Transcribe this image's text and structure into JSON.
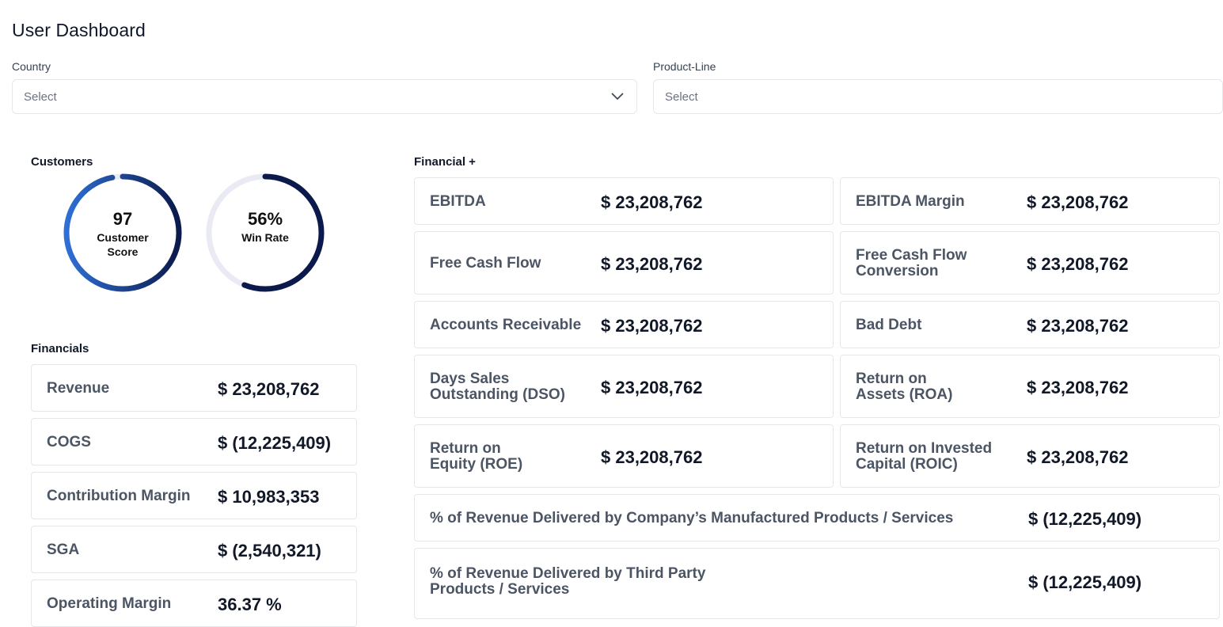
{
  "page_title": "User Dashboard",
  "filters": {
    "country": {
      "label": "Country",
      "placeholder": "Select"
    },
    "product_line": {
      "label": "Product-Line",
      "placeholder": "Select"
    }
  },
  "customers": {
    "section_label": "Customers",
    "customer_score": {
      "value": "97",
      "label_line1": "Customer",
      "label_line2": "Score",
      "progress": 0.97
    },
    "win_rate": {
      "value": "56%",
      "label": "Win Rate",
      "progress": 0.56
    }
  },
  "financials": {
    "section_label": "Financials",
    "items": [
      {
        "label": "Revenue",
        "value": "$ 23,208,762"
      },
      {
        "label": "COGS",
        "value": "$ (12,225,409)"
      },
      {
        "label": "Contribution Margin",
        "value": "$ 10,983,353"
      },
      {
        "label": "SGA",
        "value": "$ (2,540,321)"
      },
      {
        "label": "Operating Margin",
        "value": "36.37 %"
      }
    ]
  },
  "financial_plus": {
    "section_label": "Financial +",
    "items": [
      {
        "label": "EBITDA",
        "value": "$ 23,208,762"
      },
      {
        "label": "EBITDA Margin",
        "value": "$ 23,208,762"
      },
      {
        "label": "Free Cash Flow",
        "value": "$ 23,208,762"
      },
      {
        "label_line1": "Free Cash Flow",
        "label_line2": "Conversion",
        "value": "$ 23,208,762"
      },
      {
        "label": "Accounts Receivable",
        "value": "$ 23,208,762"
      },
      {
        "label": "Bad Debt",
        "value": "$ 23,208,762"
      },
      {
        "label_line1": "Days Sales",
        "label_line2": "Outstanding (DSO)",
        "value": "$ 23,208,762"
      },
      {
        "label_line1": "Return on",
        "label_line2": "Assets (ROA)",
        "value": "$ 23,208,762"
      },
      {
        "label_line1": "Return on",
        "label_line2": "Equity (ROE)",
        "value": "$ 23,208,762"
      },
      {
        "label_line1": "Return on Invested",
        "label_line2": "Capital (ROIC)",
        "value": "$ 23,208,762"
      }
    ],
    "wide_items": [
      {
        "label": "% of Revenue Delivered by Company’s Manufactured Products / Services",
        "value": "$ (12,225,409)"
      },
      {
        "label_line1": "% of Revenue Delivered by Third Party",
        "label_line2": "Products / Services",
        "value": "$ (12,225,409)"
      }
    ]
  },
  "colors": {
    "ring_dark": "#0b1a4a",
    "ring_light": "#2f6fd6",
    "ring_track": "#e9eaf3"
  },
  "icons": {
    "dropdown": "chevron-down-icon"
  }
}
